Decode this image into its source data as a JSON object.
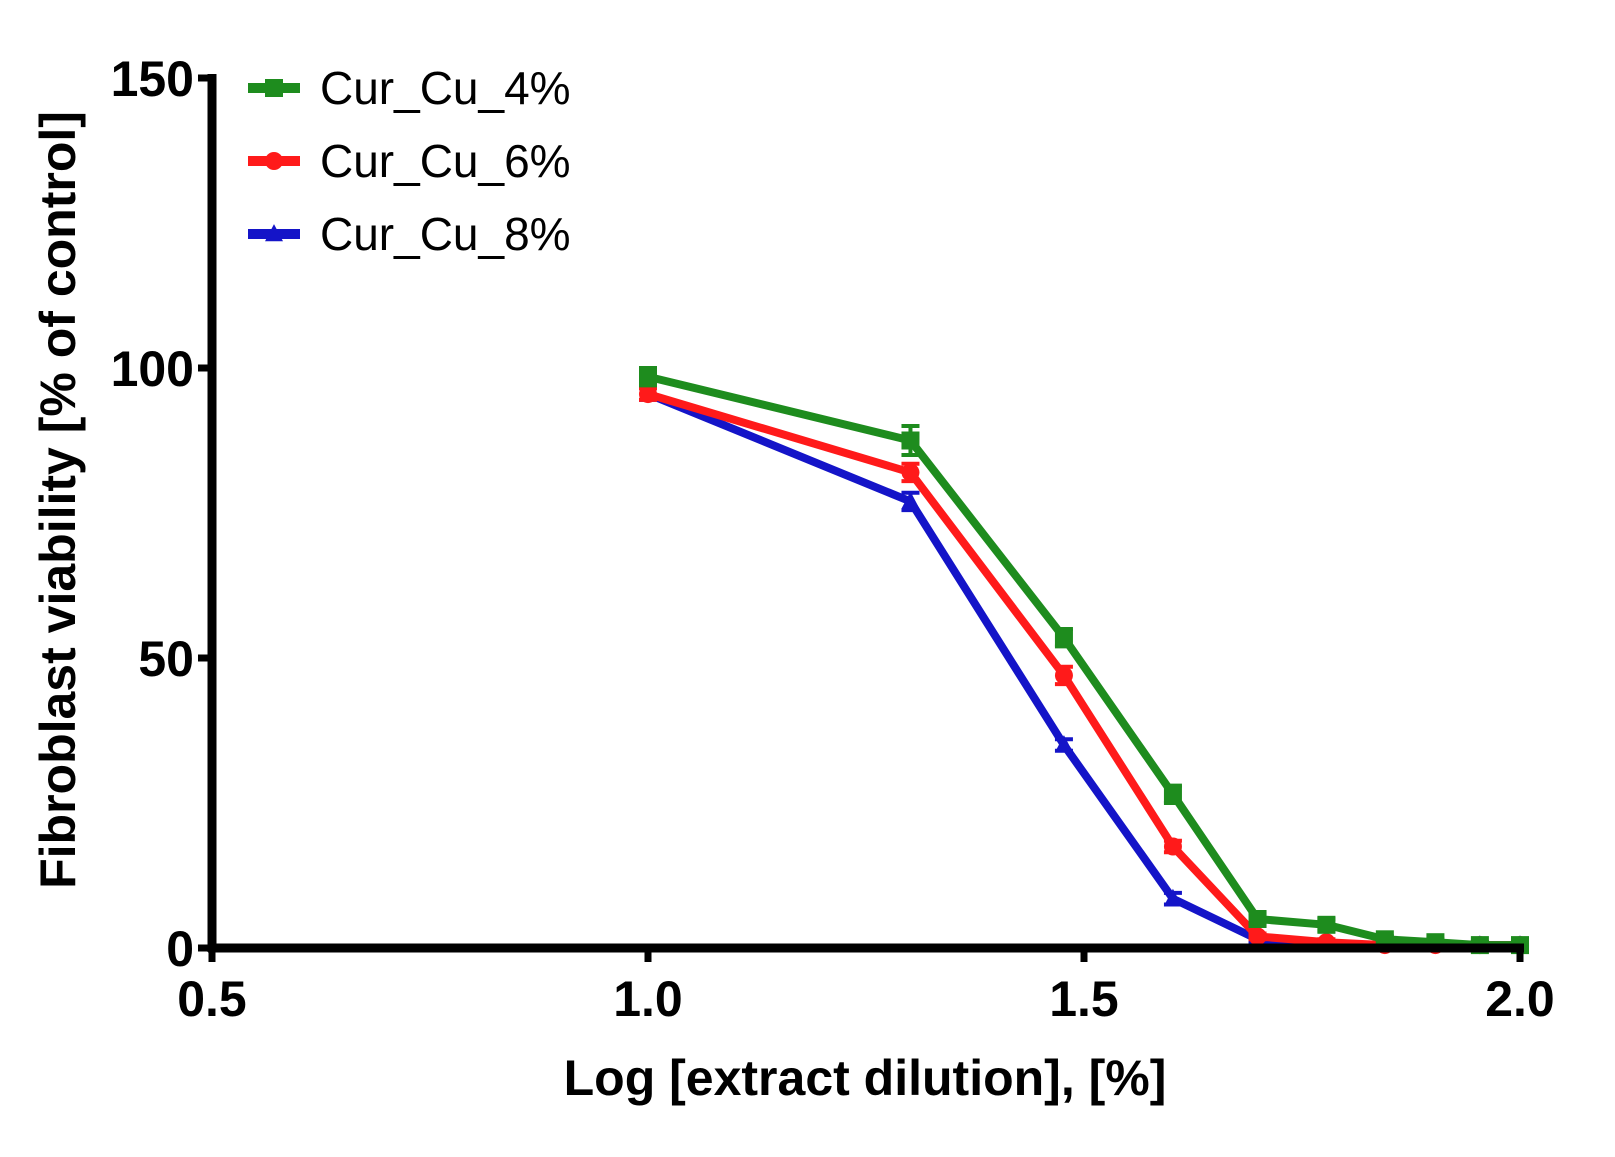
{
  "chart_data": {
    "type": "line",
    "xlabel": "Log [extract dilution], [%]",
    "ylabel": "Fibroblast viability [% of control]",
    "xlim": [
      0.5,
      2.0
    ],
    "ylim": [
      0,
      150
    ],
    "x_ticks": [
      0.5,
      1.0,
      1.5,
      2.0
    ],
    "x_tick_labels": [
      "0.5",
      "1.0",
      "1.5",
      "2.0"
    ],
    "y_ticks": [
      0,
      50,
      100,
      150
    ],
    "y_tick_labels": [
      "0",
      "50",
      "100",
      "150"
    ],
    "grid": false,
    "legend_position": "top-left",
    "series": [
      {
        "name": "Cur_Cu_4%",
        "color": "#1e8c1e",
        "marker": "square",
        "x": [
          1.0,
          1.301,
          1.477,
          1.602,
          1.699,
          1.778,
          1.845,
          1.903,
          1.954,
          2.0
        ],
        "y": [
          98.5,
          87.5,
          53.5,
          26.5,
          5.0,
          4.0,
          1.5,
          1.0,
          0.5,
          0.5
        ],
        "err": [
          1.5,
          2.5,
          1.5,
          1.5,
          1.0,
          1.0,
          0.5,
          0.5,
          0.5,
          0.5
        ]
      },
      {
        "name": "Cur_Cu_6%",
        "color": "#ff1a1a",
        "marker": "circle",
        "x": [
          1.0,
          1.301,
          1.477,
          1.602,
          1.699,
          1.778,
          1.845,
          1.903,
          1.954,
          2.0
        ],
        "y": [
          95.5,
          82.0,
          47.0,
          17.5,
          2.0,
          1.0,
          0.5,
          0.5,
          0.5,
          0.5
        ],
        "err": [
          1.0,
          1.5,
          1.5,
          1.0,
          0.5,
          0.5,
          0.5,
          0.5,
          0.5,
          0.5
        ]
      },
      {
        "name": "Cur_Cu_8%",
        "color": "#1414c8",
        "marker": "triangle",
        "x": [
          1.0,
          1.301,
          1.477,
          1.602,
          1.699,
          1.778,
          1.845,
          1.903,
          1.954,
          2.0
        ],
        "y": [
          95.5,
          77.0,
          35.0,
          8.5,
          1.5,
          0.5,
          0.5,
          0.5,
          0.5,
          0.5
        ],
        "err": [
          1.0,
          1.5,
          1.0,
          1.0,
          0.5,
          0.5,
          0.5,
          0.5,
          0.5,
          0.5
        ]
      }
    ]
  }
}
